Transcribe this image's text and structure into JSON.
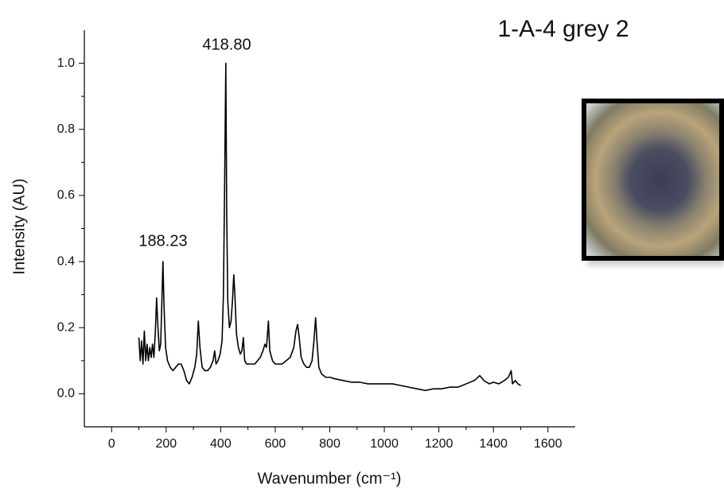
{
  "chart_data": {
    "type": "line",
    "title": "1-A-4 grey 2",
    "xlabel": "Wavenumber (cm⁻¹)",
    "ylabel": "Intensity (AU)",
    "annotations": [
      "418.80",
      "188.23"
    ],
    "xlim": [
      -100,
      1700
    ],
    "xticks": [
      0,
      200,
      400,
      600,
      800,
      1000,
      1200,
      1400,
      1600
    ],
    "ylim": [
      -0.1,
      1.1
    ],
    "yticks": [
      {
        "value": 0,
        "label": "0.0"
      },
      {
        "value": 0.2,
        "label": "0.2"
      },
      {
        "value": 0.4,
        "label": "0.4"
      },
      {
        "value": 0.6,
        "label": "0.6"
      },
      {
        "value": 0.8,
        "label": "0.8"
      },
      {
        "value": 1,
        "label": "1.0"
      }
    ],
    "grid": false,
    "x": [
      100,
      105,
      110,
      115,
      120,
      125,
      130,
      135,
      140,
      145,
      150,
      155,
      160,
      165,
      170,
      175,
      180,
      185,
      188.23,
      192,
      198,
      205,
      215,
      225,
      235,
      245,
      255,
      265,
      275,
      285,
      295,
      305,
      312,
      318,
      324,
      332,
      342,
      352,
      362,
      372,
      378,
      383,
      390,
      398,
      405,
      410,
      414,
      418.8,
      422,
      426,
      432,
      438,
      443,
      448,
      452,
      458,
      465,
      472,
      478,
      483,
      488,
      495,
      505,
      515,
      525,
      535,
      545,
      555,
      562,
      568,
      575,
      580,
      590,
      600,
      612,
      625,
      640,
      655,
      668,
      676,
      682,
      688,
      695,
      705,
      715,
      725,
      735,
      742,
      748,
      753,
      760,
      770,
      785,
      800,
      820,
      850,
      880,
      910,
      940,
      970,
      1000,
      1030,
      1060,
      1090,
      1120,
      1150,
      1180,
      1210,
      1240,
      1270,
      1300,
      1330,
      1350,
      1365,
      1385,
      1400,
      1420,
      1440,
      1455,
      1465,
      1470,
      1480,
      1490,
      1500
    ],
    "series": [
      {
        "color": "#000000",
        "values": [
          0.17,
          0.1,
          0.16,
          0.09,
          0.19,
          0.1,
          0.15,
          0.1,
          0.14,
          0.11,
          0.15,
          0.11,
          0.18,
          0.29,
          0.2,
          0.13,
          0.15,
          0.3,
          0.4,
          0.27,
          0.14,
          0.1,
          0.08,
          0.07,
          0.08,
          0.09,
          0.09,
          0.07,
          0.04,
          0.03,
          0.05,
          0.08,
          0.12,
          0.22,
          0.14,
          0.08,
          0.07,
          0.07,
          0.08,
          0.1,
          0.13,
          0.09,
          0.1,
          0.12,
          0.16,
          0.3,
          0.6,
          1.0,
          0.55,
          0.28,
          0.2,
          0.22,
          0.28,
          0.36,
          0.3,
          0.18,
          0.14,
          0.12,
          0.13,
          0.17,
          0.1,
          0.09,
          0.09,
          0.09,
          0.09,
          0.1,
          0.11,
          0.13,
          0.15,
          0.14,
          0.22,
          0.13,
          0.1,
          0.09,
          0.09,
          0.09,
          0.1,
          0.11,
          0.14,
          0.19,
          0.21,
          0.17,
          0.11,
          0.09,
          0.08,
          0.08,
          0.1,
          0.16,
          0.23,
          0.16,
          0.08,
          0.06,
          0.05,
          0.05,
          0.045,
          0.04,
          0.035,
          0.035,
          0.03,
          0.03,
          0.03,
          0.03,
          0.025,
          0.02,
          0.015,
          0.01,
          0.015,
          0.015,
          0.02,
          0.02,
          0.03,
          0.04,
          0.055,
          0.04,
          0.03,
          0.035,
          0.03,
          0.04,
          0.05,
          0.07,
          0.03,
          0.04,
          0.03,
          0.025
        ]
      }
    ]
  }
}
